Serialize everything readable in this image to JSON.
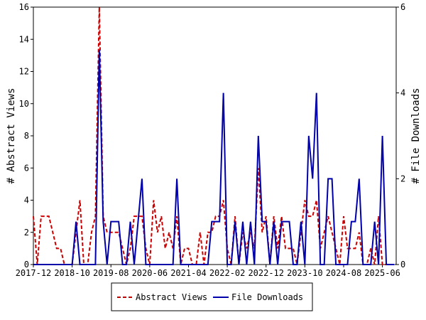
{
  "chart_data": {
    "type": "line",
    "categories": [
      "2017-12",
      null,
      null,
      null,
      null,
      null,
      null,
      null,
      null,
      null,
      "2018-10",
      null,
      null,
      null,
      null,
      null,
      null,
      null,
      null,
      null,
      "2019-08",
      null,
      null,
      null,
      null,
      null,
      null,
      null,
      null,
      null,
      "2020-06",
      null,
      null,
      null,
      null,
      null,
      null,
      null,
      null,
      null,
      "2021-04",
      null,
      null,
      null,
      null,
      null,
      null,
      null,
      null,
      null,
      "2022-02",
      null,
      null,
      null,
      null,
      null,
      null,
      null,
      null,
      null,
      "2022-12",
      null,
      null,
      null,
      null,
      null,
      null,
      null,
      null,
      null,
      "2023-10",
      null,
      null,
      null,
      null,
      null,
      null,
      null,
      null,
      null,
      "2024-08",
      null,
      null,
      null,
      null,
      null,
      null,
      null,
      null,
      null,
      "2025-06",
      null,
      null,
      null
    ],
    "ylabel": "# Abstract Views",
    "y2label": "# File Downloads",
    "ylim": [
      0,
      16
    ],
    "yticks": [
      0,
      2,
      4,
      6,
      8,
      10,
      12,
      14,
      16
    ],
    "y2lim": [
      0,
      6
    ],
    "y2ticks": [
      0,
      2,
      4,
      6
    ],
    "legend": "bottom",
    "series": [
      {
        "name": "Abstract Views",
        "color": "#cc0000",
        "dash": "dashed",
        "values": [
          3,
          0,
          3,
          3,
          3,
          2,
          1,
          1,
          0,
          0,
          0,
          2,
          4,
          0,
          0,
          2,
          3,
          16,
          3,
          2,
          2,
          2,
          2,
          1,
          0,
          1,
          3,
          3,
          3,
          1,
          0,
          4,
          2,
          3,
          1,
          2,
          1,
          3,
          0,
          1,
          1,
          0,
          0,
          2,
          0,
          2,
          2,
          3,
          3,
          4,
          1,
          0,
          3,
          0,
          2,
          1,
          2,
          1,
          6,
          2,
          3,
          0,
          3,
          1,
          3,
          1,
          1,
          1,
          0,
          2,
          4,
          3,
          3,
          4,
          1,
          2,
          3,
          2,
          1,
          0,
          3,
          1,
          1,
          1,
          2,
          0,
          0,
          1,
          0,
          3,
          0,
          0,
          0,
          0
        ]
      },
      {
        "name": "File Downloads",
        "color": "#0000aa",
        "dash": "solid",
        "axis": "y2",
        "values": [
          0,
          0,
          0,
          0,
          0,
          0,
          0,
          0,
          0,
          0,
          0,
          1,
          0,
          0,
          0,
          0,
          0,
          5,
          1,
          0,
          1,
          1,
          1,
          0,
          0,
          1,
          0,
          1,
          2,
          0,
          0,
          0,
          0,
          0,
          0,
          0,
          0,
          2,
          0,
          0,
          0,
          0,
          0,
          0,
          0,
          0,
          1,
          1,
          1,
          4,
          0,
          0,
          1,
          0,
          1,
          0,
          1,
          0,
          3,
          1,
          1,
          0,
          1,
          0,
          1,
          1,
          1,
          0,
          0,
          1,
          0,
          3,
          2,
          4,
          0,
          0,
          2,
          2,
          0,
          0,
          0,
          0,
          1,
          1,
          2,
          0,
          0,
          0,
          1,
          0,
          3,
          0,
          0,
          0
        ]
      }
    ]
  }
}
